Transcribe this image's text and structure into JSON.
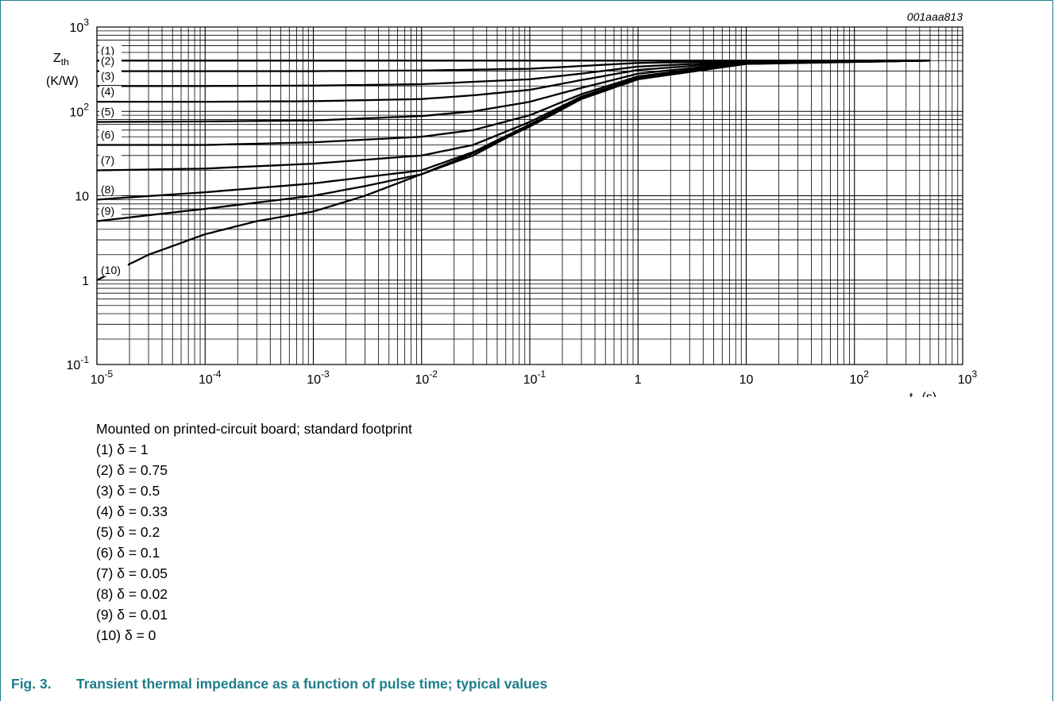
{
  "figure_code": "001aaa813",
  "chart_data": {
    "type": "line",
    "xscale": "log",
    "yscale": "log",
    "xlim": [
      1e-05,
      1000
    ],
    "ylim": [
      0.1,
      1000
    ],
    "grid": true,
    "x_ticks": [
      {
        "base": "10",
        "exp": "-5"
      },
      {
        "base": "10",
        "exp": "-4"
      },
      {
        "base": "10",
        "exp": "-3"
      },
      {
        "base": "10",
        "exp": "-2"
      },
      {
        "base": "10",
        "exp": "-1"
      },
      {
        "base": "1",
        "exp": ""
      },
      {
        "base": "10",
        "exp": ""
      },
      {
        "base": "10",
        "exp": "2"
      },
      {
        "base": "10",
        "exp": "3"
      }
    ],
    "y_ticks": [
      {
        "base": "10",
        "exp": "-1"
      },
      {
        "base": "1",
        "exp": ""
      },
      {
        "base": "10",
        "exp": ""
      },
      {
        "base": "10",
        "exp": "2"
      },
      {
        "base": "10",
        "exp": "3"
      }
    ],
    "ylabel": {
      "main": "Z",
      "sub": "th",
      "unit": "(K/W)"
    },
    "xlabel": {
      "main": "t",
      "sub": "p",
      "unit": " (s)"
    },
    "series": [
      {
        "name": "(1)",
        "points": [
          [
            1e-05,
            400
          ],
          [
            0.001,
            400
          ],
          [
            0.1,
            400
          ],
          [
            10,
            400
          ],
          [
            500,
            400
          ]
        ]
      },
      {
        "name": "(2)",
        "points": [
          [
            1e-05,
            300
          ],
          [
            0.0001,
            300
          ],
          [
            0.001,
            300
          ],
          [
            0.01,
            305
          ],
          [
            0.1,
            320
          ],
          [
            0.3,
            345
          ],
          [
            1,
            375
          ],
          [
            10,
            395
          ],
          [
            500,
            400
          ]
        ]
      },
      {
        "name": "(3)",
        "points": [
          [
            1e-05,
            200
          ],
          [
            0.0001,
            200
          ],
          [
            0.001,
            202
          ],
          [
            0.01,
            210
          ],
          [
            0.1,
            240
          ],
          [
            0.3,
            280
          ],
          [
            1,
            340
          ],
          [
            10,
            390
          ],
          [
            500,
            400
          ]
        ]
      },
      {
        "name": "(4)",
        "points": [
          [
            1e-05,
            130
          ],
          [
            0.0001,
            130
          ],
          [
            0.001,
            132
          ],
          [
            0.01,
            140
          ],
          [
            0.03,
            155
          ],
          [
            0.1,
            180
          ],
          [
            0.3,
            235
          ],
          [
            1,
            310
          ],
          [
            10,
            385
          ],
          [
            500,
            400
          ]
        ]
      },
      {
        "name": "(5)",
        "points": [
          [
            1e-05,
            75
          ],
          [
            0.0001,
            76
          ],
          [
            0.001,
            78
          ],
          [
            0.01,
            88
          ],
          [
            0.03,
            100
          ],
          [
            0.1,
            130
          ],
          [
            0.3,
            190
          ],
          [
            1,
            280
          ],
          [
            10,
            380
          ],
          [
            500,
            400
          ]
        ]
      },
      {
        "name": "(6)",
        "points": [
          [
            1e-05,
            40
          ],
          [
            0.0001,
            40
          ],
          [
            0.001,
            43
          ],
          [
            0.01,
            50
          ],
          [
            0.03,
            60
          ],
          [
            0.1,
            90
          ],
          [
            0.3,
            160
          ],
          [
            1,
            260
          ],
          [
            10,
            375
          ],
          [
            500,
            400
          ]
        ]
      },
      {
        "name": "(7)",
        "points": [
          [
            1e-05,
            20
          ],
          [
            0.0001,
            21
          ],
          [
            0.001,
            24
          ],
          [
            0.01,
            30
          ],
          [
            0.03,
            40
          ],
          [
            0.1,
            75
          ],
          [
            0.3,
            150
          ],
          [
            1,
            250
          ],
          [
            10,
            370
          ],
          [
            500,
            400
          ]
        ]
      },
      {
        "name": "(8)",
        "points": [
          [
            1e-05,
            9
          ],
          [
            0.0001,
            11
          ],
          [
            0.001,
            14
          ],
          [
            0.01,
            20
          ],
          [
            0.03,
            33
          ],
          [
            0.1,
            70
          ],
          [
            0.3,
            145
          ],
          [
            1,
            245
          ],
          [
            10,
            368
          ],
          [
            500,
            400
          ]
        ]
      },
      {
        "name": "(9)",
        "points": [
          [
            1e-05,
            5
          ],
          [
            0.0001,
            7
          ],
          [
            0.001,
            10
          ],
          [
            0.003,
            13
          ],
          [
            0.01,
            18
          ],
          [
            0.03,
            30
          ],
          [
            0.1,
            68
          ],
          [
            0.3,
            142
          ],
          [
            1,
            243
          ],
          [
            10,
            366
          ],
          [
            500,
            400
          ]
        ]
      },
      {
        "name": "(10)",
        "points": [
          [
            1e-05,
            1
          ],
          [
            3e-05,
            2
          ],
          [
            0.0001,
            3.5
          ],
          [
            0.0003,
            5
          ],
          [
            0.001,
            6.5
          ],
          [
            0.003,
            10
          ],
          [
            0.01,
            18
          ],
          [
            0.03,
            32
          ],
          [
            0.1,
            66
          ],
          [
            0.3,
            140
          ],
          [
            1,
            240
          ],
          [
            10,
            365
          ],
          [
            500,
            400
          ]
        ]
      }
    ]
  },
  "notes": {
    "mounting": "Mounted on printed-circuit board; standard footprint",
    "legend": [
      "(1) δ = 1",
      "(2) δ = 0.75",
      "(3) δ = 0.5",
      "(4) δ = 0.33",
      "(5) δ = 0.2",
      "(6) δ = 0.1",
      "(7) δ = 0.05",
      "(8) δ = 0.02",
      "(9) δ = 0.01",
      "(10) δ = 0"
    ]
  },
  "caption": {
    "number": "Fig. 3.",
    "text": "Transient thermal impedance as a function of pulse time; typical values"
  },
  "colors": {
    "caption": "#1f7d8c",
    "border": "#1f7d8c",
    "curve": "#000000"
  }
}
